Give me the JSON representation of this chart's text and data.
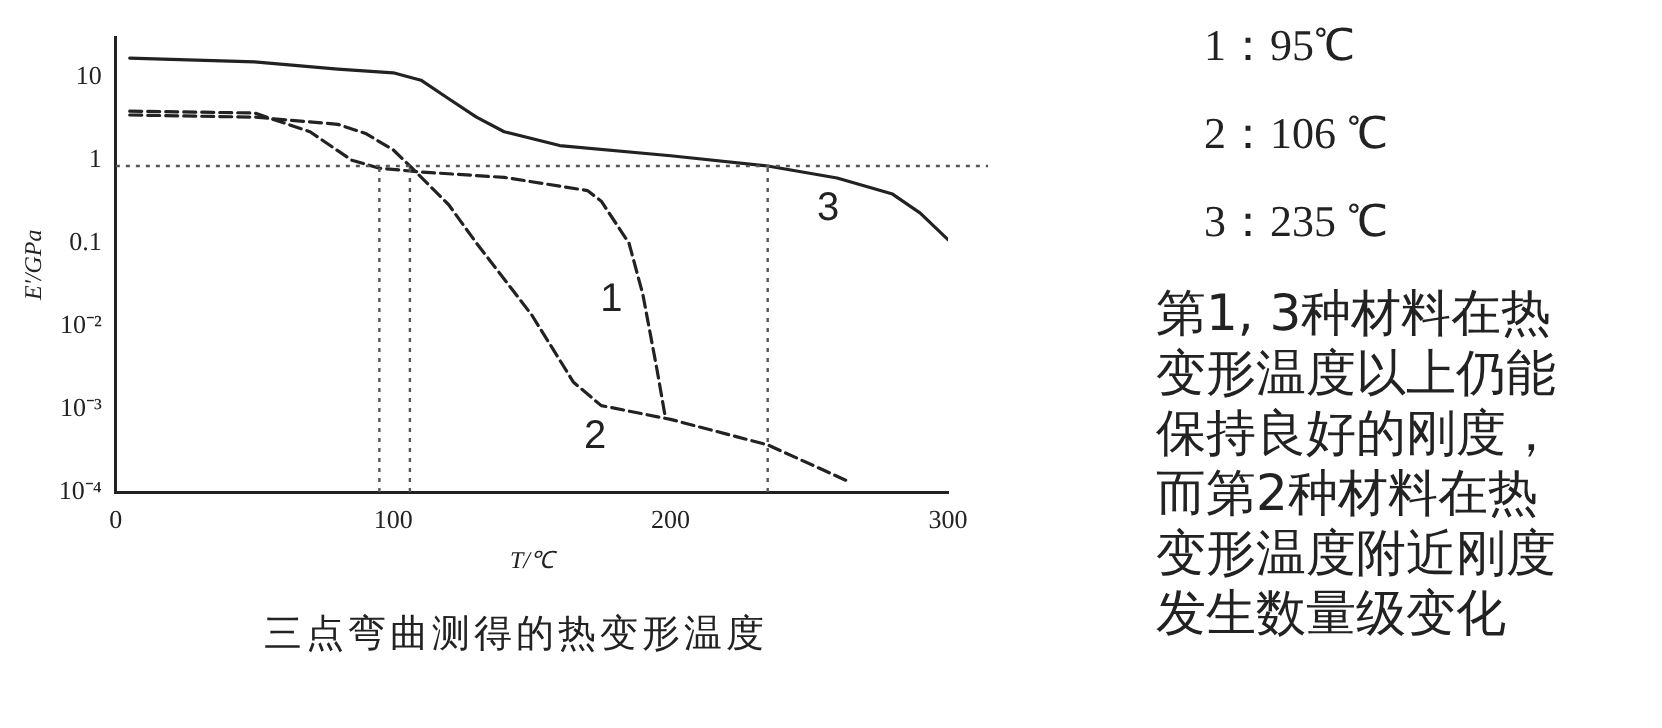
{
  "chart_data": {
    "type": "line",
    "title": "三点弯曲测得的热变形温度",
    "xlabel": "T/℃",
    "ylabel": "E'/GPa",
    "xlim": [
      0,
      300
    ],
    "xticks": [
      0,
      100,
      200,
      300
    ],
    "ylim": [
      0.0001,
      30
    ],
    "yticks": [
      {
        "value": 0.0001,
        "label": "10⁻⁴"
      },
      {
        "value": 0.001,
        "label": "10⁻³"
      },
      {
        "value": 0.01,
        "label": "10⁻²"
      },
      0.1,
      1,
      10
    ],
    "log": "y",
    "grid": false,
    "legend": false,
    "marker": "none",
    "series": [
      {
        "color": "#222222",
        "line_style": "dashed",
        "x": [
          5,
          50,
          70,
          85,
          95,
          110,
          140,
          170,
          175,
          185,
          190,
          195,
          198
        ],
        "values": [
          3.9,
          3.7,
          2.2,
          1.0,
          0.8,
          0.72,
          0.62,
          0.43,
          0.32,
          0.1,
          0.024,
          0.0031,
          0.00083
        ]
      },
      {
        "color": "#222222",
        "line_style": "dashed",
        "x": [
          5,
          50,
          80,
          90,
          100,
          106,
          120,
          130,
          150,
          165,
          175,
          200,
          235,
          265
        ],
        "values": [
          3.5,
          3.3,
          2.7,
          2.1,
          1.33,
          0.85,
          0.29,
          0.1,
          0.0135,
          0.0021,
          0.0011,
          0.00075,
          0.00037,
          0.00013
        ]
      },
      {
        "color": "#222222",
        "line_style": "solid",
        "x": [
          5,
          50,
          80,
          100,
          110,
          120,
          130,
          140,
          160,
          200,
          235,
          260,
          280,
          290,
          300
        ],
        "values": [
          17,
          15.3,
          12.5,
          11.3,
          9.2,
          5.5,
          3.3,
          2.2,
          1.5,
          1.13,
          0.85,
          0.61,
          0.39,
          0.23,
          0.11
        ]
      }
    ],
    "ref_lines": [
      {
        "axis": "y",
        "value": 0.85,
        "color": "#555555",
        "line_style": "dotted"
      },
      {
        "axis": "x",
        "value": 95,
        "color": "#555555",
        "line_style": "dotted"
      },
      {
        "axis": "x",
        "value": 106,
        "color": "#555555",
        "line_style": "dotted"
      },
      {
        "axis": "x",
        "value": 235,
        "color": "#555555",
        "line_style": "dotted"
      }
    ],
    "annotations": [
      {
        "text": "1",
        "x": 190,
        "y": 0.024
      },
      {
        "text": "2",
        "x": 175,
        "y": 0.0011
      },
      {
        "text": "3",
        "x": 260,
        "y": 0.61
      },
      "1：95℃",
      "2：106 ℃",
      "3：235 ℃",
      "第1, 3种材料在热变形温度以上仍能保持良好的刚度，而第2种材料在热变形温度附近刚度发生数量级变化"
    ]
  }
}
